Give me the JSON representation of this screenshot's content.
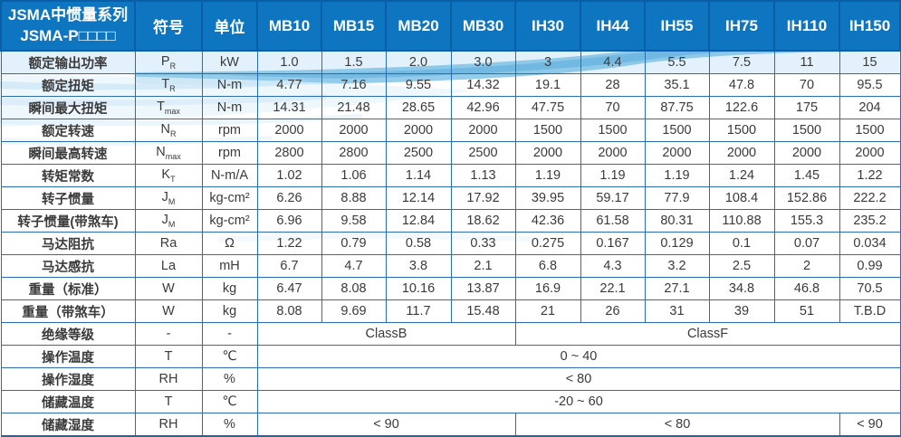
{
  "table": {
    "title_line1": "JSMA中惯量系列",
    "title_line2": "JSMA-P□□□□",
    "col_symbol": "符号",
    "col_unit": "单位",
    "models": [
      "MB10",
      "MB15",
      "MB20",
      "MB30",
      "IH30",
      "IH44",
      "IH55",
      "IH75",
      "IH110",
      "IH150"
    ],
    "rows": [
      {
        "label": "额定输出功率",
        "sym": "P",
        "sub": "R",
        "unit": "kW",
        "values": [
          "1.0",
          "1.5",
          "2.0",
          "3.0",
          "3",
          "4.4",
          "5.5",
          "7.5",
          "11",
          "15"
        ]
      },
      {
        "label": "额定扭矩",
        "sym": "T",
        "sub": "R",
        "unit": "N-m",
        "values": [
          "4.77",
          "7.16",
          "9.55",
          "14.32",
          "19.1",
          "28",
          "35.1",
          "47.8",
          "70",
          "95.5"
        ]
      },
      {
        "label": "瞬间最大扭矩",
        "sym": "T",
        "sub": "max",
        "unit": "N-m",
        "values": [
          "14.31",
          "21.48",
          "28.65",
          "42.96",
          "47.75",
          "70",
          "87.75",
          "122.6",
          "175",
          "204"
        ]
      },
      {
        "label": "额定转速",
        "sym": "N",
        "sub": "R",
        "unit": "rpm",
        "values": [
          "2000",
          "2000",
          "2000",
          "2000",
          "1500",
          "1500",
          "1500",
          "1500",
          "1500",
          "1500"
        ]
      },
      {
        "label": "瞬间最高转速",
        "sym": "N",
        "sub": "max",
        "unit": "rpm",
        "values": [
          "2800",
          "2800",
          "2500",
          "2500",
          "2000",
          "2000",
          "2000",
          "2000",
          "2000",
          "2000"
        ]
      },
      {
        "label": "转矩常数",
        "sym": "K",
        "sub": "T",
        "unit": "N-m/A",
        "values": [
          "1.02",
          "1.06",
          "1.14",
          "1.13",
          "1.19",
          "1.19",
          "1.19",
          "1.24",
          "1.45",
          "1.22"
        ]
      },
      {
        "label": "转子惯量",
        "sym": "J",
        "sub": "M",
        "unit": "kg-cm²",
        "values": [
          "6.26",
          "8.88",
          "12.14",
          "17.92",
          "39.95",
          "59.17",
          "77.9",
          "108.4",
          "152.86",
          "222.2"
        ]
      },
      {
        "label": "转子惯量(带煞车)",
        "sym": "J",
        "sub": "M",
        "unit": "kg-cm²",
        "values": [
          "6.96",
          "9.58",
          "12.84",
          "18.62",
          "42.36",
          "61.58",
          "80.31",
          "110.88",
          "155.3",
          "235.2"
        ]
      },
      {
        "label": "马达阻抗",
        "sym": "Ra",
        "sub": "",
        "unit": "Ω",
        "values": [
          "1.22",
          "0.79",
          "0.58",
          "0.33",
          "0.275",
          "0.167",
          "0.129",
          "0.1",
          "0.07",
          "0.034"
        ]
      },
      {
        "label": "马达感抗",
        "sym": "La",
        "sub": "",
        "unit": "mH",
        "values": [
          "6.7",
          "4.7",
          "3.8",
          "2.1",
          "6.8",
          "4.3",
          "3.2",
          "2.5",
          "2",
          "0.99"
        ]
      },
      {
        "label": "重量（标准）",
        "sym": "W",
        "sub": "",
        "unit": "kg",
        "values": [
          "6.47",
          "8.08",
          "10.16",
          "13.87",
          "16.9",
          "22.1",
          "27.1",
          "34.8",
          "46.8",
          "70.5"
        ]
      },
      {
        "label": "重量（带煞车）",
        "sym": "W",
        "sub": "",
        "unit": "kg",
        "values": [
          "8.08",
          "9.69",
          "11.7",
          "15.48",
          "21",
          "26",
          "31",
          "39",
          "51",
          "T.B.D"
        ]
      }
    ],
    "merged_rows": [
      {
        "label": "绝缘等级",
        "sym": "-",
        "sub": "",
        "unit": "-",
        "cells": [
          {
            "text": "ClassB",
            "span": 4
          },
          {
            "text": "ClassF",
            "span": 6
          }
        ]
      },
      {
        "label": "操作温度",
        "sym": "T",
        "sub": "",
        "unit": "℃",
        "cells": [
          {
            "text": "0 ~ 40",
            "span": 10
          }
        ]
      },
      {
        "label": "操作湿度",
        "sym": "RH",
        "sub": "",
        "unit": "%",
        "cells": [
          {
            "text": "< 80",
            "span": 10
          }
        ]
      },
      {
        "label": "储藏温度",
        "sym": "T",
        "sub": "",
        "unit": "℃",
        "cells": [
          {
            "text": "-20 ~ 60",
            "span": 10
          }
        ]
      },
      {
        "label": "储藏湿度",
        "sym": "RH",
        "sub": "",
        "unit": "%",
        "cells": [
          {
            "text": "< 90",
            "span": 4
          },
          {
            "text": "< 80",
            "span": 5
          },
          {
            "text": "< 90",
            "span": 1
          }
        ]
      }
    ],
    "colors": {
      "header_bg": "#0e76c0",
      "header_border": "#0a5da6",
      "body_border": "#2a6db3",
      "wave_deep": "#79bfe6",
      "wave_light": "#cfe7f7",
      "wave_faint": "#e7f3fb"
    }
  }
}
